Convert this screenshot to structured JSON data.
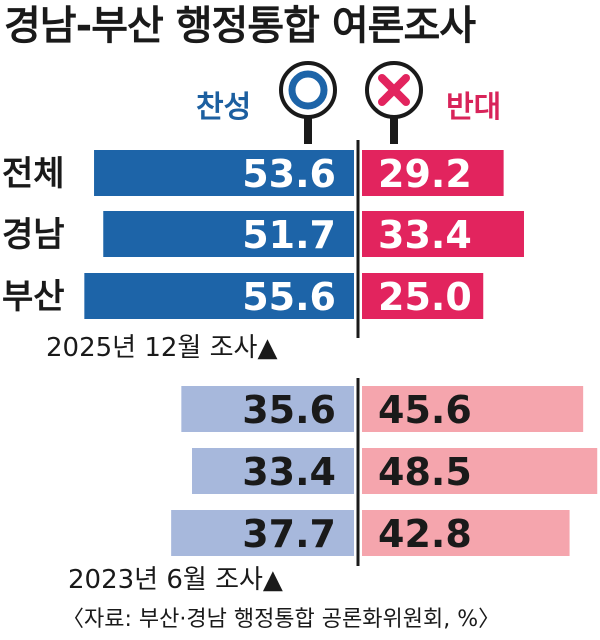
{
  "title": "경남-부산 행정통합 여론조사",
  "legend": {
    "for_label": "찬성",
    "against_label": "반대",
    "for_color": "#1d64a8",
    "against_color": "#e2245e",
    "for_color_old": "#a7b8dc",
    "against_color_old": "#f5a5ad"
  },
  "chart_data": [
    {
      "type": "bar",
      "title": "2025년 12월 조사▲",
      "categories": [
        "전체",
        "경남",
        "부산"
      ],
      "series": [
        {
          "name": "찬성",
          "values": [
            53.6,
            51.7,
            55.6
          ]
        },
        {
          "name": "반대",
          "values": [
            29.2,
            33.4,
            25.0
          ]
        }
      ],
      "value_labels": {
        "for": [
          "53.6",
          "51.7",
          "55.6"
        ],
        "against": [
          "29.2",
          "33.4",
          "25.0"
        ]
      }
    },
    {
      "type": "bar",
      "title": "2023년 6월 조사▲",
      "categories": [
        "",
        "",
        ""
      ],
      "series": [
        {
          "name": "찬성",
          "values": [
            35.6,
            33.4,
            37.7
          ]
        },
        {
          "name": "반대",
          "values": [
            45.6,
            48.5,
            42.8
          ]
        }
      ],
      "value_labels": {
        "for": [
          "35.6",
          "33.4",
          "37.7"
        ],
        "against": [
          "45.6",
          "48.5",
          "42.8"
        ]
      }
    }
  ],
  "source": "〈자료: 부산·경남 행정통합 공론화위원회, %〉"
}
